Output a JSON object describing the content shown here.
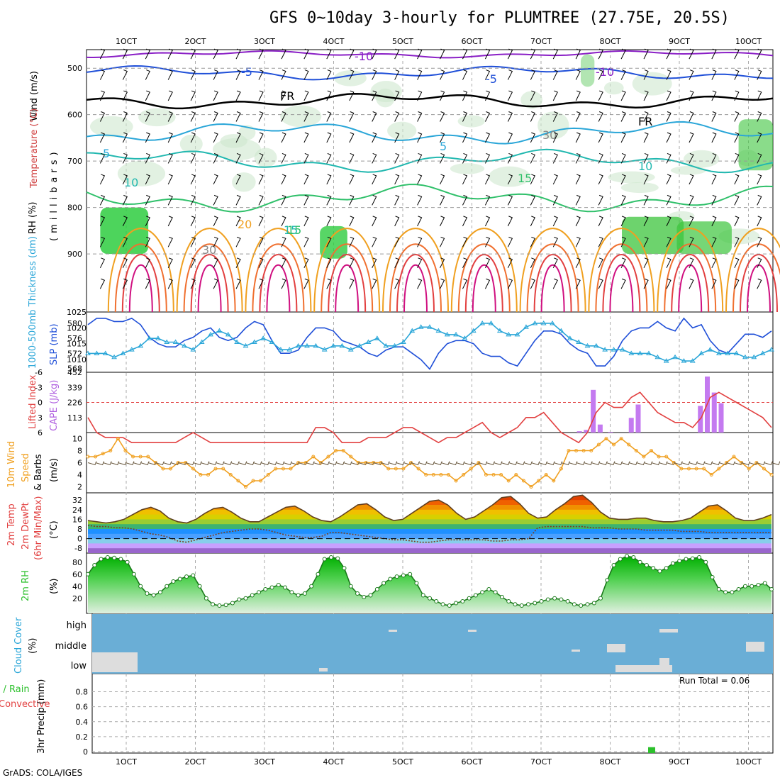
{
  "title": "GFS 0~10day 3-hourly for PLUMTREE (27.75E, 20.5S)",
  "footer": "GrADS: COLA/IGES",
  "run_total": "Run Total = 0.06",
  "x_ticks": [
    "1OCT",
    "2OCT",
    "3OCT",
    "4OCT",
    "5OCT",
    "6OCT",
    "7OCT",
    "8OCT",
    "9OCT",
    "10OCT"
  ],
  "colors": {
    "purple": "#8a1fc6",
    "blue": "#1f4fd8",
    "cyan": "#2aa6d8",
    "teal": "#22b8b0",
    "green": "#2fc06a",
    "orange": "#f0a020",
    "red": "#e24040",
    "magenta": "#d01080",
    "sky": "#6aaed6",
    "rhgreen": "#2cd22c"
  },
  "panels": {
    "upper": {
      "ylabel_wind": "Wind (m/s)",
      "ylabel_temp": "Temperature (°C)",
      "ylabel_mb": "(millibars)",
      "ylabel_rh": "RH (%)",
      "yticks": [
        "500",
        "600",
        "700",
        "800",
        "900"
      ],
      "contour_labels": [
        "-10",
        "-10",
        "-5",
        "-5",
        "FR",
        "FR",
        "5",
        "5",
        "10",
        "10",
        "15",
        "15",
        "15",
        "20",
        "30",
        "30"
      ]
    },
    "slp": {
      "ylabel_thick": "1000-500mb Thickness (dm)",
      "ylabel_slp": "SLP (mb)",
      "left_ticks": [
        "580",
        "576",
        "572",
        "568"
      ],
      "right_ticks": [
        "1025",
        "1020",
        "1015",
        "1010"
      ]
    },
    "cape": {
      "ylabel_li": "Lifted Index",
      "ylabel_cape": "CAPE (J/kg)",
      "left_ticks": [
        "-6",
        "-3",
        "0",
        "3",
        "6"
      ],
      "right_ticks": [
        "452",
        "339",
        "226",
        "113"
      ]
    },
    "wind10": {
      "ylabel1": "10m Wind",
      "ylabel2": "Speed",
      "ylabel3": "& Barbs",
      "ylabel_unit": "(m/s)",
      "yticks": [
        "10",
        "8",
        "6",
        "4",
        "2"
      ]
    },
    "temp2m": {
      "ylabel1": "2m Temp",
      "ylabel2": "2m DewPt",
      "ylabel3": "(6hr Min/Max)",
      "ylabel_unit": "(°C)",
      "yticks": [
        "32",
        "24",
        "16",
        "8",
        "0",
        "-8"
      ]
    },
    "rh2m": {
      "ylabel": "2m RH",
      "ylabel_unit": "(%)",
      "yticks": [
        "80",
        "60",
        "40",
        "20"
      ]
    },
    "cloud": {
      "ylabel": "Cloud Cover",
      "ylabel_unit": "(%)",
      "levels": [
        "high",
        "middle",
        "low"
      ]
    },
    "precip": {
      "ylabel1": "Total / Rain",
      "ylabel2": "Convective",
      "ylabel3": "3hr Precip (mm)",
      "yticks": [
        "0.8",
        "0.6",
        "0.4",
        "0.2",
        "0"
      ]
    }
  },
  "chart_data": [
    {
      "type": "line",
      "panel": "slp",
      "series": [
        {
          "name": "SLP (mb)",
          "values": [
            1021,
            1023,
            1023,
            1022,
            1022,
            1023,
            1021,
            1017,
            1015,
            1014,
            1014,
            1016,
            1017,
            1019,
            1020,
            1017,
            1016,
            1017,
            1020,
            1022,
            1021,
            1016,
            1012,
            1012,
            1013,
            1017,
            1020,
            1020,
            1019,
            1016,
            1015,
            1014,
            1012,
            1011,
            1013,
            1014,
            1014,
            1012,
            1010,
            1007,
            1012,
            1015,
            1016,
            1016,
            1015,
            1012,
            1011,
            1011,
            1009,
            1008,
            1012,
            1016,
            1019,
            1019,
            1018,
            1015,
            1013,
            1012,
            1008,
            1008,
            1011,
            1016,
            1019,
            1020,
            1020,
            1022,
            1020,
            1019,
            1023,
            1020,
            1021,
            1016,
            1013,
            1012,
            1015,
            1018,
            1018,
            1017,
            1019
          ]
        },
        {
          "name": "1000-500mb Thickness (dm)",
          "values": [
            572,
            572,
            572,
            571,
            572,
            573,
            574,
            576,
            576,
            575,
            575,
            574,
            573,
            575,
            577,
            578,
            577,
            575,
            574,
            575,
            576,
            575,
            573,
            573,
            574,
            574,
            574,
            573,
            574,
            574,
            573,
            574,
            575,
            576,
            574,
            574,
            575,
            578,
            579,
            579,
            578,
            577,
            577,
            576,
            578,
            580,
            580,
            578,
            577,
            577,
            579,
            580,
            580,
            580,
            578,
            576,
            575,
            574,
            574,
            573,
            573,
            573,
            572,
            572,
            572,
            571,
            570,
            571,
            570,
            570,
            572,
            573,
            572,
            572,
            572,
            571,
            571,
            572,
            573
          ]
        }
      ]
    },
    {
      "type": "bar",
      "panel": "cape",
      "name": "CAPE (J/kg)",
      "x": [
        7.55,
        7.65,
        7.75,
        7.85,
        8.0,
        8.3,
        8.4,
        9.3,
        9.4,
        9.5,
        9.6
      ],
      "values": [
        10,
        20,
        320,
        60,
        5,
        110,
        210,
        200,
        420,
        300,
        220
      ]
    },
    {
      "type": "line",
      "panel": "cape",
      "name": "Lifted Index",
      "values": [
        3,
        6,
        7,
        7,
        7,
        8,
        8,
        8,
        8,
        8,
        8,
        7,
        6,
        7,
        8,
        8,
        8,
        8,
        8,
        8,
        8,
        8,
        8,
        8,
        8,
        8,
        5,
        5,
        6,
        8,
        8,
        8,
        7,
        7,
        7,
        6,
        5,
        5,
        6,
        7,
        8,
        7,
        7,
        6,
        5,
        4,
        6,
        7,
        6,
        5,
        3,
        3,
        2,
        4,
        6,
        7,
        8,
        6,
        2,
        0,
        1,
        1,
        -1,
        -2,
        0,
        2,
        3,
        4,
        4,
        5,
        3,
        -1,
        -2,
        -1,
        0,
        1,
        2,
        3,
        5
      ]
    },
    {
      "type": "line",
      "panel": "wind10",
      "name": "10m Wind Speed (m/s)",
      "values": [
        7,
        7,
        7.5,
        8,
        10,
        8,
        7,
        7,
        7,
        6,
        5,
        5,
        6,
        6,
        5,
        4,
        4,
        5,
        5,
        4,
        3,
        2,
        3,
        3,
        4,
        5,
        5,
        5,
        6,
        6,
        7,
        6,
        7,
        8,
        8,
        7,
        6,
        6,
        6,
        6,
        5,
        5,
        5,
        6,
        5,
        4,
        4,
        4,
        4,
        3,
        4,
        5,
        6,
        4,
        4,
        4,
        3,
        4,
        3,
        2,
        3,
        4,
        3,
        5,
        8,
        8,
        8,
        8,
        9,
        10,
        9,
        10,
        9,
        8,
        7,
        8,
        7,
        7,
        6,
        5,
        5,
        5,
        5,
        4,
        5,
        6,
        7,
        6,
        5,
        6,
        5,
        4
      ]
    },
    {
      "type": "area",
      "panel": "temp2m",
      "series": [
        {
          "name": "2m Temp",
          "values": [
            15,
            14,
            13,
            14,
            16,
            20,
            24,
            26,
            23,
            17,
            14,
            13,
            16,
            21,
            25,
            26,
            22,
            17,
            14,
            14,
            18,
            22,
            26,
            27,
            23,
            18,
            15,
            14,
            18,
            23,
            28,
            29,
            24,
            18,
            15,
            16,
            21,
            26,
            31,
            32,
            28,
            21,
            16,
            18,
            23,
            28,
            34,
            35,
            29,
            21,
            17,
            18,
            24,
            29,
            35,
            36,
            30,
            22,
            17,
            16,
            16,
            17,
            17,
            15,
            14,
            14,
            15,
            17,
            22,
            27,
            28,
            23,
            17,
            15,
            15,
            17,
            20
          ]
        },
        {
          "name": "2m DewPt",
          "values": [
            11,
            10,
            10,
            9,
            9,
            8,
            6,
            4,
            3,
            1,
            -2,
            -3,
            -1,
            1,
            3,
            5,
            6,
            7,
            8,
            8,
            7,
            5,
            3,
            2,
            1,
            1,
            2,
            5,
            5,
            4,
            3,
            2,
            1,
            0,
            -1,
            -1,
            -2,
            -3,
            -3,
            -2,
            -1,
            -1,
            -1,
            -1,
            -1,
            -2,
            -2,
            -1,
            -1,
            0,
            9,
            10,
            10,
            10,
            10,
            10,
            9,
            9,
            9,
            8,
            8,
            8,
            7,
            7,
            7,
            7,
            6,
            6,
            6,
            5,
            5,
            5,
            5,
            5,
            5,
            5,
            5
          ]
        }
      ]
    },
    {
      "type": "area",
      "panel": "rh2m",
      "name": "2m RH (%)",
      "values": [
        60,
        75,
        85,
        88,
        87,
        85,
        80,
        60,
        40,
        28,
        25,
        30,
        40,
        48,
        52,
        56,
        58,
        40,
        20,
        10,
        8,
        9,
        12,
        18,
        20,
        25,
        30,
        35,
        38,
        42,
        38,
        30,
        25,
        28,
        40,
        60,
        85,
        88,
        86,
        70,
        40,
        28,
        22,
        25,
        35,
        45,
        52,
        56,
        58,
        60,
        45,
        25,
        20,
        15,
        10,
        8,
        12,
        15,
        20,
        25,
        30,
        35,
        30,
        22,
        15,
        10,
        8,
        10,
        12,
        15,
        18,
        20,
        18,
        15,
        10,
        8,
        10,
        12,
        20,
        50,
        75,
        85,
        90,
        88,
        80,
        75,
        70,
        65,
        70,
        78,
        82,
        85,
        86,
        88,
        80,
        55,
        35,
        30,
        30,
        35,
        40,
        40,
        42,
        45,
        35
      ]
    },
    {
      "type": "bar",
      "panel": "precip",
      "name": "3hr Precip (mm)",
      "x": [
        8.6
      ],
      "values": [
        0.03
      ]
    }
  ]
}
